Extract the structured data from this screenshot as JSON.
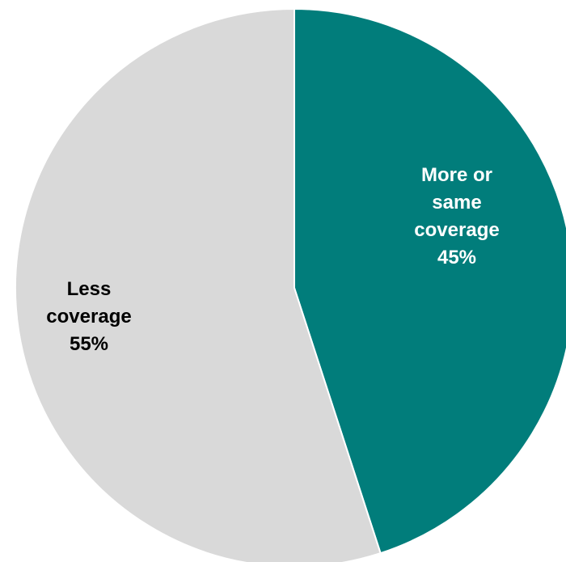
{
  "chart_data": {
    "type": "pie",
    "title": "",
    "categories": [
      "More or same coverage",
      "Less coverage"
    ],
    "values": [
      45,
      55
    ],
    "unit": "%",
    "colors": [
      "#017d7b",
      "#d9d9d9"
    ],
    "start_angle_deg": 0,
    "direction": "clockwise",
    "legend": "none",
    "labels": [
      {
        "lines": [
          "More or",
          "same",
          "coverage"
        ],
        "value_text": "45%",
        "color": "#ffffff"
      },
      {
        "lines": [
          "Less",
          "coverage"
        ],
        "value_text": "55%",
        "color": "#000000"
      }
    ]
  }
}
